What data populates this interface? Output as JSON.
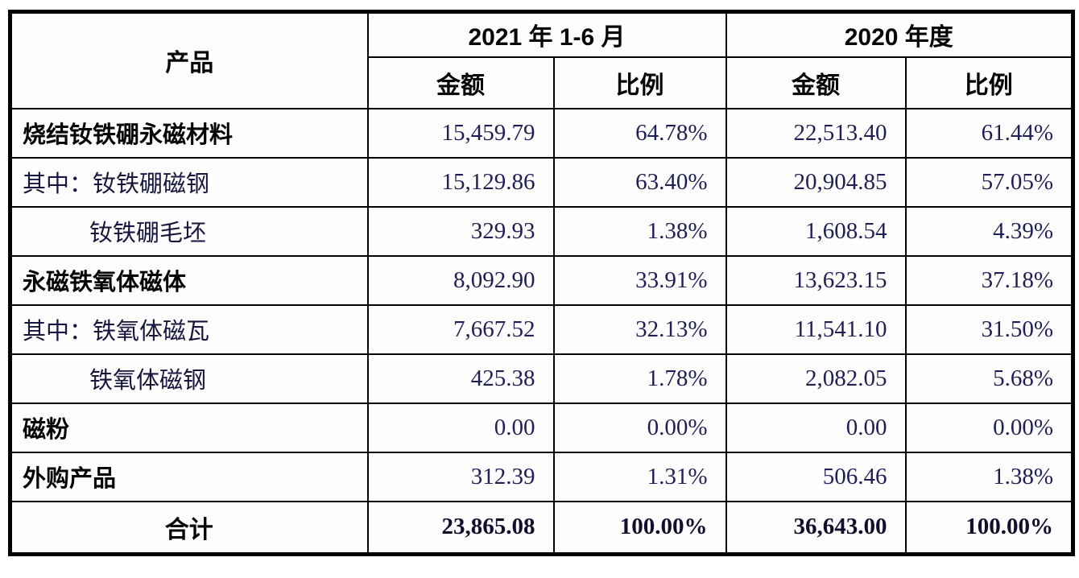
{
  "table": {
    "header": {
      "product_label": "产品",
      "period_2021": "2021 年 1-6 月",
      "period_2020": "2020 年度",
      "amount_label_2021": "金额",
      "ratio_label_2021": "比例",
      "amount_label_2020": "金额",
      "ratio_label_2020": "比例"
    },
    "rows": [
      {
        "name": "烧结钕铁硼永磁材料",
        "amount_2021": "15,459.79",
        "ratio_2021": "64.78%",
        "amount_2020": "22,513.40",
        "ratio_2020": "61.44%"
      },
      {
        "name": "其中：钕铁硼磁钢",
        "amount_2021": "15,129.86",
        "ratio_2021": "63.40%",
        "amount_2020": "20,904.85",
        "ratio_2020": "57.05%"
      },
      {
        "name": "钕铁硼毛坯",
        "amount_2021": "329.93",
        "ratio_2021": "1.38%",
        "amount_2020": "1,608.54",
        "ratio_2020": "4.39%"
      },
      {
        "name": "永磁铁氧体磁体",
        "amount_2021": "8,092.90",
        "ratio_2021": "33.91%",
        "amount_2020": "13,623.15",
        "ratio_2020": "37.18%"
      },
      {
        "name": "其中：铁氧体磁瓦",
        "amount_2021": "7,667.52",
        "ratio_2021": "32.13%",
        "amount_2020": "11,541.10",
        "ratio_2020": "31.50%"
      },
      {
        "name": "铁氧体磁钢",
        "amount_2021": "425.38",
        "ratio_2021": "1.78%",
        "amount_2020": "2,082.05",
        "ratio_2020": "5.68%"
      },
      {
        "name": "磁粉",
        "amount_2021": "0.00",
        "ratio_2021": "0.00%",
        "amount_2020": "0.00",
        "ratio_2020": "0.00%"
      },
      {
        "name": "外购产品",
        "amount_2021": "312.39",
        "ratio_2021": "1.31%",
        "amount_2020": "506.46",
        "ratio_2020": "1.38%"
      },
      {
        "name": "合计",
        "amount_2021": "23,865.08",
        "ratio_2021": "100.00%",
        "amount_2020": "36,643.00",
        "ratio_2020": "100.00%"
      }
    ],
    "colors": {
      "border": "#000000",
      "number_text": "#1f1f55",
      "heading_text": "#050508",
      "background": "#ffffff"
    }
  }
}
